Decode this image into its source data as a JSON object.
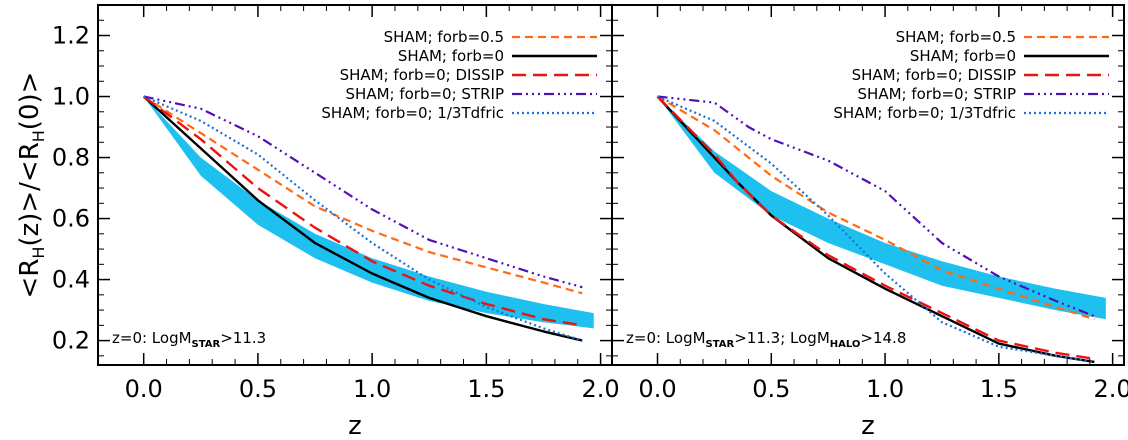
{
  "chart_data": [
    {
      "type": "line",
      "xlabel": "z",
      "ylabel": "<R_H(z)>/<R_H(0)>",
      "xlim": [
        -0.2,
        2.05
      ],
      "ylim": [
        0.12,
        1.3
      ],
      "xticks": [
        "0.0",
        "0.5",
        "1.0",
        "1.5",
        "2.0"
      ],
      "yticks": [
        "0.2",
        "0.4",
        "0.6",
        "0.8",
        "1.0",
        "1.2"
      ],
      "annotation": {
        "prefix": "z=0: LogM",
        "sub1": "STAR",
        "mid": ">11.3",
        "sub2": "",
        "suffix": ""
      },
      "band": {
        "color": "#1ec0f0",
        "x": [
          0.0,
          0.25,
          0.5,
          0.75,
          1.0,
          1.25,
          1.5,
          1.75,
          1.97
        ],
        "upper": [
          1.0,
          0.8,
          0.66,
          0.55,
          0.47,
          0.41,
          0.36,
          0.32,
          0.29
        ],
        "lower": [
          1.0,
          0.74,
          0.58,
          0.47,
          0.39,
          0.33,
          0.29,
          0.26,
          0.24
        ]
      },
      "series": [
        {
          "name": "SHAM; forb=0.5",
          "color": "#ff6a14",
          "dash": "8,5",
          "width": 2.2,
          "x": [
            0.0,
            0.25,
            0.5,
            0.75,
            1.0,
            1.25,
            1.5,
            1.75,
            1.92
          ],
          "y": [
            1.0,
            0.88,
            0.76,
            0.64,
            0.56,
            0.49,
            0.44,
            0.39,
            0.355
          ]
        },
        {
          "name": "SHAM; forb=0",
          "color": "#000000",
          "dash": "",
          "width": 2.4,
          "x": [
            0.0,
            0.25,
            0.5,
            0.75,
            1.0,
            1.25,
            1.5,
            1.75,
            1.92
          ],
          "y": [
            1.0,
            0.83,
            0.66,
            0.52,
            0.42,
            0.34,
            0.28,
            0.23,
            0.2
          ]
        },
        {
          "name": "SHAM; forb=0; DISSIP",
          "color": "#ee1111",
          "dash": "14,7",
          "width": 2.4,
          "x": [
            0.0,
            0.25,
            0.5,
            0.75,
            1.0,
            1.25,
            1.5,
            1.75,
            1.92
          ],
          "y": [
            1.0,
            0.86,
            0.7,
            0.57,
            0.46,
            0.38,
            0.32,
            0.27,
            0.25
          ]
        },
        {
          "name": "SHAM; forb=0; STRIP",
          "color": "#5010b8",
          "dash": "10,4,2,4,2,4,2,4",
          "width": 2.2,
          "x": [
            0.0,
            0.25,
            0.5,
            0.75,
            1.0,
            1.25,
            1.5,
            1.75,
            1.92
          ],
          "y": [
            1.0,
            0.96,
            0.87,
            0.75,
            0.63,
            0.53,
            0.47,
            0.41,
            0.375
          ]
        },
        {
          "name": "SHAM; forb=0; 1/3Tdfric",
          "color": "#1e6ed8",
          "dash": "2,3",
          "width": 2.2,
          "x": [
            0.0,
            0.25,
            0.5,
            0.75,
            1.0,
            1.25,
            1.5,
            1.75,
            1.92
          ],
          "y": [
            1.0,
            0.92,
            0.81,
            0.66,
            0.52,
            0.4,
            0.31,
            0.24,
            0.2
          ]
        }
      ]
    },
    {
      "type": "line",
      "xlabel": "z",
      "ylabel": "",
      "xlim": [
        -0.2,
        2.05
      ],
      "ylim": [
        0.12,
        1.3
      ],
      "xticks": [
        "0.0",
        "0.5",
        "1.0",
        "1.5",
        "2.0"
      ],
      "yticks": [
        "0.2",
        "0.4",
        "0.6",
        "0.8",
        "1.0",
        "1.2"
      ],
      "annotation": {
        "prefix": "z=0: LogM",
        "sub1": "STAR",
        "mid": ">11.3; LogM",
        "sub2": "HALO",
        "suffix": ">14.8"
      },
      "band": {
        "color": "#1ec0f0",
        "x": [
          0.0,
          0.25,
          0.5,
          0.75,
          1.0,
          1.25,
          1.5,
          1.75,
          1.97
        ],
        "upper": [
          1.0,
          0.82,
          0.69,
          0.6,
          0.52,
          0.46,
          0.41,
          0.37,
          0.34
        ],
        "lower": [
          1.0,
          0.75,
          0.61,
          0.52,
          0.45,
          0.38,
          0.34,
          0.3,
          0.27
        ]
      },
      "series": [
        {
          "name": "SHAM; forb=0.5",
          "color": "#ff6a14",
          "dash": "8,5",
          "width": 2.2,
          "x": [
            0.0,
            0.25,
            0.5,
            0.75,
            1.0,
            1.25,
            1.5,
            1.75,
            1.92
          ],
          "y": [
            1.0,
            0.89,
            0.74,
            0.62,
            0.53,
            0.43,
            0.37,
            0.31,
            0.27
          ]
        },
        {
          "name": "SHAM; forb=0",
          "color": "#000000",
          "dash": "",
          "width": 2.4,
          "x": [
            0.0,
            0.25,
            0.35,
            0.5,
            0.75,
            1.0,
            1.25,
            1.5,
            1.75,
            1.92
          ],
          "y": [
            1.0,
            0.8,
            0.72,
            0.61,
            0.47,
            0.37,
            0.28,
            0.19,
            0.15,
            0.13
          ]
        },
        {
          "name": "SHAM; forb=0; DISSIP",
          "color": "#ee1111",
          "dash": "14,7",
          "width": 2.4,
          "x": [
            0.0,
            0.25,
            0.35,
            0.5,
            0.75,
            1.0,
            1.25,
            1.5,
            1.75,
            1.92
          ],
          "y": [
            1.0,
            0.81,
            0.72,
            0.61,
            0.48,
            0.38,
            0.29,
            0.2,
            0.16,
            0.14
          ]
        },
        {
          "name": "SHAM; forb=0; STRIP",
          "color": "#5010b8",
          "dash": "10,4,2,4,2,4,2,4",
          "width": 2.2,
          "x": [
            0.0,
            0.25,
            0.4,
            0.5,
            0.75,
            1.0,
            1.25,
            1.5,
            1.75,
            1.92
          ],
          "y": [
            1.0,
            0.98,
            0.9,
            0.86,
            0.79,
            0.69,
            0.52,
            0.41,
            0.33,
            0.28
          ]
        },
        {
          "name": "SHAM; forb=0; 1/3Tdfric",
          "color": "#1e6ed8",
          "dash": "2,3",
          "width": 2.2,
          "x": [
            0.0,
            0.25,
            0.5,
            0.75,
            1.0,
            1.25,
            1.5,
            1.75,
            1.92
          ],
          "y": [
            1.0,
            0.92,
            0.78,
            0.61,
            0.42,
            0.26,
            0.18,
            0.15,
            0.13
          ]
        }
      ]
    }
  ]
}
